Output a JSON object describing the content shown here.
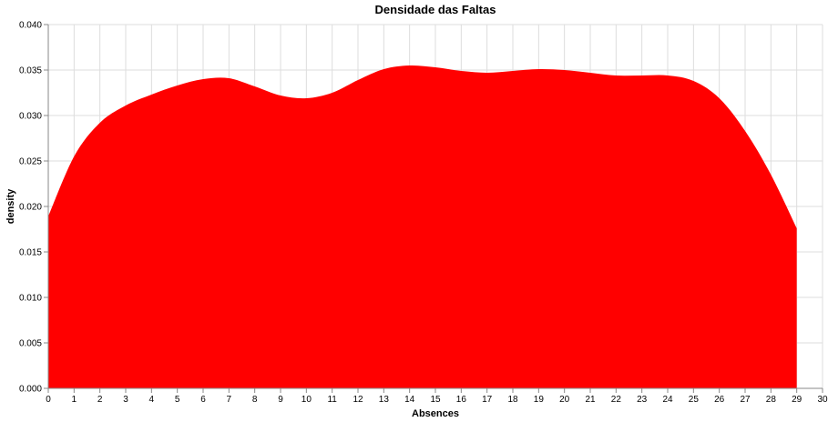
{
  "chart_data": {
    "type": "area",
    "title": "Densidade das Faltas",
    "xlabel": "Absences",
    "ylabel": "density",
    "xlim": [
      0,
      30
    ],
    "ylim": [
      0,
      0.04
    ],
    "x_ticks": [
      0,
      1,
      2,
      3,
      4,
      5,
      6,
      7,
      8,
      9,
      10,
      11,
      12,
      13,
      14,
      15,
      16,
      17,
      18,
      19,
      20,
      21,
      22,
      23,
      24,
      25,
      26,
      27,
      28,
      29,
      30
    ],
    "y_ticks": [
      "0.000",
      "0.005",
      "0.010",
      "0.015",
      "0.020",
      "0.025",
      "0.030",
      "0.035",
      "0.040"
    ],
    "grid": true,
    "series": [
      {
        "color": "#ff0000",
        "x": [
          0,
          1,
          2,
          3,
          4,
          5,
          6,
          7,
          8,
          9,
          10,
          11,
          12,
          13,
          14,
          15,
          16,
          17,
          18,
          19,
          20,
          21,
          22,
          23,
          24,
          25,
          26,
          27,
          28,
          29
        ],
        "values": [
          0.0189,
          0.0255,
          0.0292,
          0.0311,
          0.0323,
          0.0333,
          0.034,
          0.0341,
          0.0332,
          0.0322,
          0.0319,
          0.0325,
          0.0339,
          0.0351,
          0.0355,
          0.0353,
          0.0349,
          0.0347,
          0.0349,
          0.0351,
          0.035,
          0.0347,
          0.0344,
          0.0344,
          0.0344,
          0.0338,
          0.0319,
          0.0283,
          0.0235,
          0.0176
        ]
      }
    ]
  }
}
